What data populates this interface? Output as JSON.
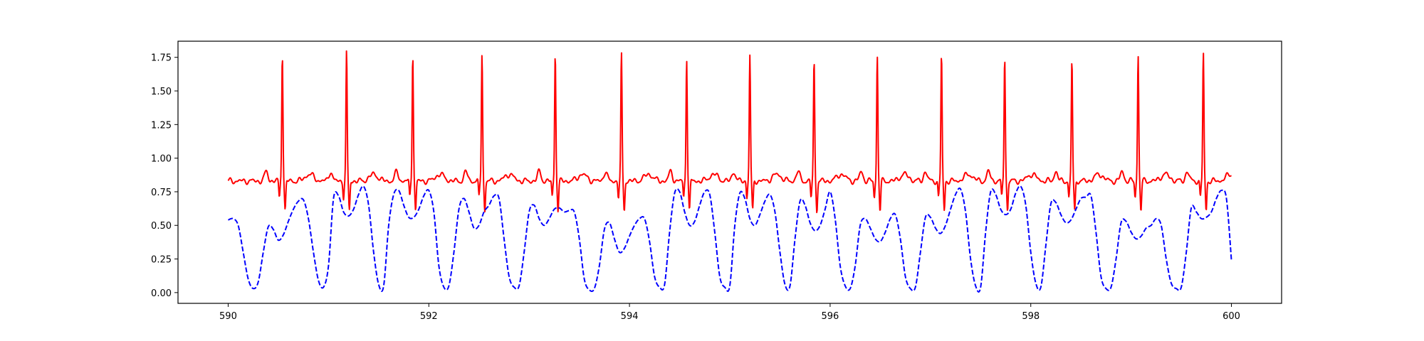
{
  "chart_data": {
    "type": "line",
    "title": "",
    "xlabel": "",
    "ylabel": "",
    "xlim": [
      589.5,
      600.5
    ],
    "ylim": [
      -0.08,
      1.87
    ],
    "x_ticks": [
      590,
      592,
      594,
      596,
      598,
      600
    ],
    "x_tick_labels": [
      "590",
      "592",
      "594",
      "596",
      "598",
      "600"
    ],
    "y_ticks": [
      0.0,
      0.25,
      0.5,
      0.75,
      1.0,
      1.25,
      1.5,
      1.75
    ],
    "y_tick_labels": [
      "0.00",
      "0.25",
      "0.50",
      "0.75",
      "1.00",
      "1.25",
      "1.50",
      "1.75"
    ],
    "grid": false,
    "legend": "none",
    "series": [
      {
        "style": "solid",
        "color": "#ff0000",
        "baseline": 0.83,
        "beats": [
          {
            "t": 590.54,
            "peak": 1.78
          },
          {
            "t": 591.18,
            "peak": 1.79
          },
          {
            "t": 591.84,
            "peak": 1.78
          },
          {
            "t": 592.53,
            "peak": 1.78
          },
          {
            "t": 593.26,
            "peak": 1.79
          },
          {
            "t": 593.92,
            "peak": 1.77
          },
          {
            "t": 594.57,
            "peak": 1.75
          },
          {
            "t": 595.2,
            "peak": 1.76
          },
          {
            "t": 595.84,
            "peak": 1.72
          },
          {
            "t": 596.47,
            "peak": 1.76
          },
          {
            "t": 597.11,
            "peak": 1.77
          },
          {
            "t": 597.74,
            "peak": 1.76
          },
          {
            "t": 598.41,
            "peak": 1.73
          },
          {
            "t": 599.07,
            "peak": 1.77
          },
          {
            "t": 599.72,
            "peak": 1.78
          }
        ],
        "x_range": [
          590.0,
          600.0
        ]
      },
      {
        "style": "dashed",
        "color": "#0000ff",
        "points": [
          [
            590.0,
            0.54
          ],
          [
            590.05,
            0.55
          ],
          [
            590.1,
            0.5
          ],
          [
            590.15,
            0.3
          ],
          [
            590.2,
            0.1
          ],
          [
            590.25,
            0.03
          ],
          [
            590.3,
            0.08
          ],
          [
            590.35,
            0.3
          ],
          [
            590.4,
            0.49
          ],
          [
            590.45,
            0.47
          ],
          [
            590.5,
            0.39
          ],
          [
            590.55,
            0.43
          ],
          [
            590.6,
            0.53
          ],
          [
            590.65,
            0.62
          ],
          [
            590.7,
            0.68
          ],
          [
            590.75,
            0.69
          ],
          [
            590.8,
            0.55
          ],
          [
            590.85,
            0.3
          ],
          [
            590.9,
            0.09
          ],
          [
            590.95,
            0.04
          ],
          [
            591.0,
            0.2
          ],
          [
            591.05,
            0.7
          ],
          [
            591.1,
            0.72
          ],
          [
            591.15,
            0.6
          ],
          [
            591.2,
            0.57
          ],
          [
            591.25,
            0.62
          ],
          [
            591.3,
            0.73
          ],
          [
            591.35,
            0.79
          ],
          [
            591.4,
            0.65
          ],
          [
            591.45,
            0.3
          ],
          [
            591.5,
            0.06
          ],
          [
            591.55,
            0.05
          ],
          [
            591.6,
            0.5
          ],
          [
            591.65,
            0.73
          ],
          [
            591.7,
            0.76
          ],
          [
            591.75,
            0.65
          ],
          [
            591.8,
            0.56
          ],
          [
            591.85,
            0.56
          ],
          [
            591.9,
            0.62
          ],
          [
            591.95,
            0.72
          ],
          [
            592.0,
            0.76
          ],
          [
            592.05,
            0.6
          ],
          [
            592.1,
            0.2
          ],
          [
            592.15,
            0.04
          ],
          [
            592.2,
            0.05
          ],
          [
            592.25,
            0.3
          ],
          [
            592.3,
            0.62
          ],
          [
            592.35,
            0.7
          ],
          [
            592.4,
            0.6
          ],
          [
            592.45,
            0.48
          ],
          [
            592.5,
            0.5
          ],
          [
            592.55,
            0.6
          ],
          [
            592.6,
            0.65
          ],
          [
            592.65,
            0.72
          ],
          [
            592.7,
            0.7
          ],
          [
            592.75,
            0.4
          ],
          [
            592.8,
            0.12
          ],
          [
            592.85,
            0.04
          ],
          [
            592.9,
            0.05
          ],
          [
            592.95,
            0.3
          ],
          [
            593.0,
            0.6
          ],
          [
            593.05,
            0.65
          ],
          [
            593.1,
            0.55
          ],
          [
            593.15,
            0.5
          ],
          [
            593.2,
            0.55
          ],
          [
            593.25,
            0.62
          ],
          [
            593.3,
            0.63
          ],
          [
            593.35,
            0.6
          ],
          [
            593.4,
            0.61
          ],
          [
            593.45,
            0.6
          ],
          [
            593.5,
            0.4
          ],
          [
            593.55,
            0.1
          ],
          [
            593.6,
            0.02
          ],
          [
            593.65,
            0.03
          ],
          [
            593.7,
            0.2
          ],
          [
            593.75,
            0.47
          ],
          [
            593.8,
            0.52
          ],
          [
            593.85,
            0.4
          ],
          [
            593.9,
            0.3
          ],
          [
            593.95,
            0.33
          ],
          [
            594.0,
            0.42
          ],
          [
            594.05,
            0.5
          ],
          [
            594.1,
            0.55
          ],
          [
            594.15,
            0.55
          ],
          [
            594.2,
            0.38
          ],
          [
            594.25,
            0.12
          ],
          [
            594.3,
            0.04
          ],
          [
            594.35,
            0.06
          ],
          [
            594.4,
            0.45
          ],
          [
            594.45,
            0.74
          ],
          [
            594.5,
            0.75
          ],
          [
            594.55,
            0.6
          ],
          [
            594.6,
            0.5
          ],
          [
            594.65,
            0.53
          ],
          [
            594.7,
            0.65
          ],
          [
            594.75,
            0.75
          ],
          [
            594.8,
            0.73
          ],
          [
            594.85,
            0.45
          ],
          [
            594.9,
            0.12
          ],
          [
            594.95,
            0.04
          ],
          [
            595.0,
            0.05
          ],
          [
            595.05,
            0.5
          ],
          [
            595.1,
            0.74
          ],
          [
            595.15,
            0.7
          ],
          [
            595.2,
            0.55
          ],
          [
            595.25,
            0.5
          ],
          [
            595.3,
            0.58
          ],
          [
            595.35,
            0.68
          ],
          [
            595.4,
            0.73
          ],
          [
            595.45,
            0.6
          ],
          [
            595.5,
            0.3
          ],
          [
            595.55,
            0.06
          ],
          [
            595.6,
            0.05
          ],
          [
            595.65,
            0.4
          ],
          [
            595.7,
            0.68
          ],
          [
            595.75,
            0.65
          ],
          [
            595.8,
            0.52
          ],
          [
            595.85,
            0.46
          ],
          [
            595.9,
            0.5
          ],
          [
            595.95,
            0.62
          ],
          [
            596.0,
            0.75
          ],
          [
            596.05,
            0.55
          ],
          [
            596.1,
            0.2
          ],
          [
            596.15,
            0.05
          ],
          [
            596.2,
            0.03
          ],
          [
            596.25,
            0.2
          ],
          [
            596.3,
            0.5
          ],
          [
            596.35,
            0.55
          ],
          [
            596.4,
            0.48
          ],
          [
            596.45,
            0.4
          ],
          [
            596.5,
            0.38
          ],
          [
            596.55,
            0.45
          ],
          [
            596.6,
            0.55
          ],
          [
            596.65,
            0.58
          ],
          [
            596.7,
            0.4
          ],
          [
            596.75,
            0.12
          ],
          [
            596.8,
            0.03
          ],
          [
            596.85,
            0.04
          ],
          [
            596.9,
            0.3
          ],
          [
            596.95,
            0.56
          ],
          [
            597.0,
            0.56
          ],
          [
            597.05,
            0.48
          ],
          [
            597.1,
            0.44
          ],
          [
            597.15,
            0.5
          ],
          [
            597.2,
            0.62
          ],
          [
            597.25,
            0.73
          ],
          [
            597.3,
            0.77
          ],
          [
            597.35,
            0.6
          ],
          [
            597.4,
            0.25
          ],
          [
            597.45,
            0.05
          ],
          [
            597.5,
            0.04
          ],
          [
            597.55,
            0.45
          ],
          [
            597.6,
            0.75
          ],
          [
            597.65,
            0.73
          ],
          [
            597.7,
            0.62
          ],
          [
            597.75,
            0.58
          ],
          [
            597.8,
            0.62
          ],
          [
            597.85,
            0.74
          ],
          [
            597.9,
            0.79
          ],
          [
            597.95,
            0.65
          ],
          [
            598.0,
            0.3
          ],
          [
            598.05,
            0.07
          ],
          [
            598.1,
            0.04
          ],
          [
            598.15,
            0.35
          ],
          [
            598.2,
            0.66
          ],
          [
            598.25,
            0.67
          ],
          [
            598.3,
            0.58
          ],
          [
            598.35,
            0.52
          ],
          [
            598.4,
            0.54
          ],
          [
            598.45,
            0.62
          ],
          [
            598.5,
            0.7
          ],
          [
            598.55,
            0.71
          ],
          [
            598.6,
            0.72
          ],
          [
            598.65,
            0.45
          ],
          [
            598.7,
            0.12
          ],
          [
            598.75,
            0.03
          ],
          [
            598.8,
            0.04
          ],
          [
            598.85,
            0.25
          ],
          [
            598.9,
            0.52
          ],
          [
            598.95,
            0.53
          ],
          [
            599.0,
            0.45
          ],
          [
            599.05,
            0.4
          ],
          [
            599.1,
            0.42
          ],
          [
            599.15,
            0.48
          ],
          [
            599.2,
            0.5
          ],
          [
            599.25,
            0.55
          ],
          [
            599.3,
            0.5
          ],
          [
            599.35,
            0.25
          ],
          [
            599.4,
            0.07
          ],
          [
            599.45,
            0.03
          ],
          [
            599.5,
            0.04
          ],
          [
            599.55,
            0.3
          ],
          [
            599.6,
            0.63
          ],
          [
            599.65,
            0.6
          ],
          [
            599.7,
            0.55
          ],
          [
            599.75,
            0.56
          ],
          [
            599.8,
            0.6
          ],
          [
            599.85,
            0.7
          ],
          [
            599.9,
            0.76
          ],
          [
            599.95,
            0.7
          ],
          [
            600.0,
            0.24
          ]
        ]
      }
    ]
  }
}
